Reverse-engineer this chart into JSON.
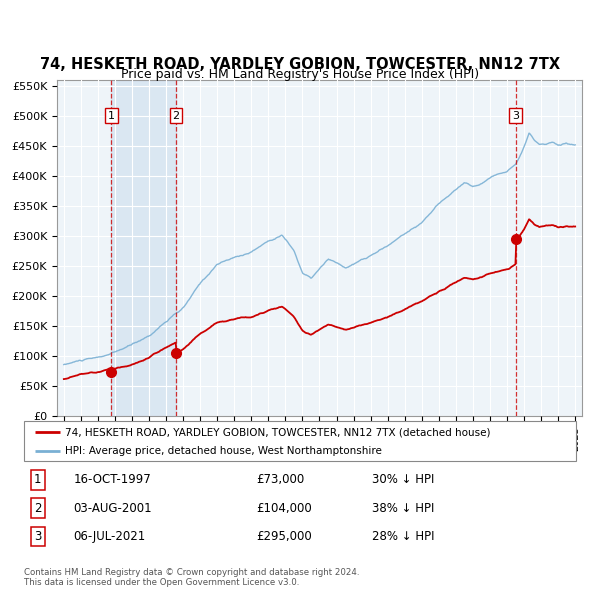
{
  "title": "74, HESKETH ROAD, YARDLEY GOBION, TOWCESTER, NN12 7TX",
  "subtitle": "Price paid vs. HM Land Registry's House Price Index (HPI)",
  "title_fontsize": 10.5,
  "subtitle_fontsize": 9,
  "ylim": [
    0,
    560000
  ],
  "yticks": [
    0,
    50000,
    100000,
    150000,
    200000,
    250000,
    300000,
    350000,
    400000,
    450000,
    500000,
    550000
  ],
  "ytick_labels": [
    "£0",
    "£50K",
    "£100K",
    "£150K",
    "£200K",
    "£250K",
    "£300K",
    "£350K",
    "£400K",
    "£450K",
    "£500K",
    "£550K"
  ],
  "xlim_start": 1994.6,
  "xlim_end": 2025.4,
  "sales": [
    {
      "date_num": 1997.79,
      "price": 73000,
      "label": "1"
    },
    {
      "date_num": 2001.58,
      "price": 104000,
      "label": "2"
    },
    {
      "date_num": 2021.5,
      "price": 295000,
      "label": "3"
    }
  ],
  "sale_info": [
    {
      "num": "1",
      "date": "16-OCT-1997",
      "price": "£73,000",
      "hpi": "30% ↓ HPI"
    },
    {
      "num": "2",
      "date": "03-AUG-2001",
      "price": "£104,000",
      "hpi": "38% ↓ HPI"
    },
    {
      "num": "3",
      "date": "06-JUL-2021",
      "price": "£295,000",
      "hpi": "28% ↓ HPI"
    }
  ],
  "legend_entries": [
    "74, HESKETH ROAD, YARDLEY GOBION, TOWCESTER, NN12 7TX (detached house)",
    "HPI: Average price, detached house, West Northamptonshire"
  ],
  "footer": "Contains HM Land Registry data © Crown copyright and database right 2024.\nThis data is licensed under the Open Government Licence v3.0.",
  "property_line_color": "#cc0000",
  "hpi_line_color": "#7ab0d4",
  "sale_dot_color": "#cc0000",
  "highlight_color": "#c8dcec",
  "grid_color": "#cccccc",
  "chart_bg": "#eef4f9"
}
